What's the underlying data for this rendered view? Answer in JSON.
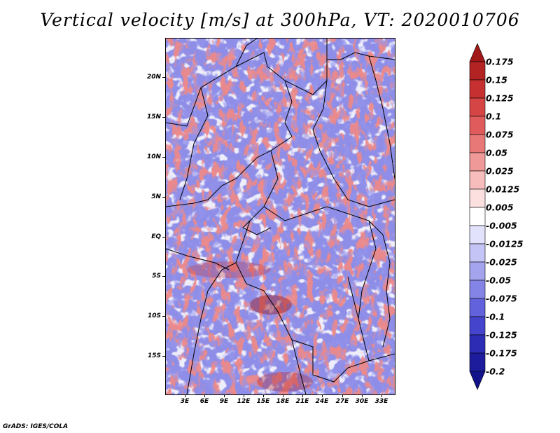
{
  "title": "Vertical velocity [m/s] at 300hPa, VT: 2020010706",
  "lat_labels": [
    "20N",
    "15N",
    "10N",
    "5N",
    "EQ",
    "5S",
    "10S",
    "15S"
  ],
  "lon_labels": [
    "3E",
    "6E",
    "9E",
    "12E",
    "15E",
    "18E",
    "21E",
    "24E",
    "27E",
    "30E",
    "33E"
  ],
  "colorbar": {
    "levels": [
      "0.175",
      "0.15",
      "0.125",
      "0.1",
      "0.075",
      "0.05",
      "0.025",
      "0.0125",
      "0.005",
      "-0.005",
      "-0.0125",
      "-0.025",
      "-0.05",
      "-0.075",
      "-0.1",
      "-0.125",
      "-0.175",
      "-0.2"
    ],
    "colors": [
      "#a01818",
      "#b42323",
      "#c63030",
      "#d64545",
      "#e05c5c",
      "#e87878",
      "#f09999",
      "#f7bcbc",
      "#fce0e0",
      "#ffffff",
      "#e2e2fc",
      "#c4c4f6",
      "#a4a4ee",
      "#8484e6",
      "#6262dc",
      "#4444cc",
      "#2c2cb4",
      "#1c1c9c",
      "#12128a"
    ]
  },
  "footer": "GrADS: IGES/COLA"
}
